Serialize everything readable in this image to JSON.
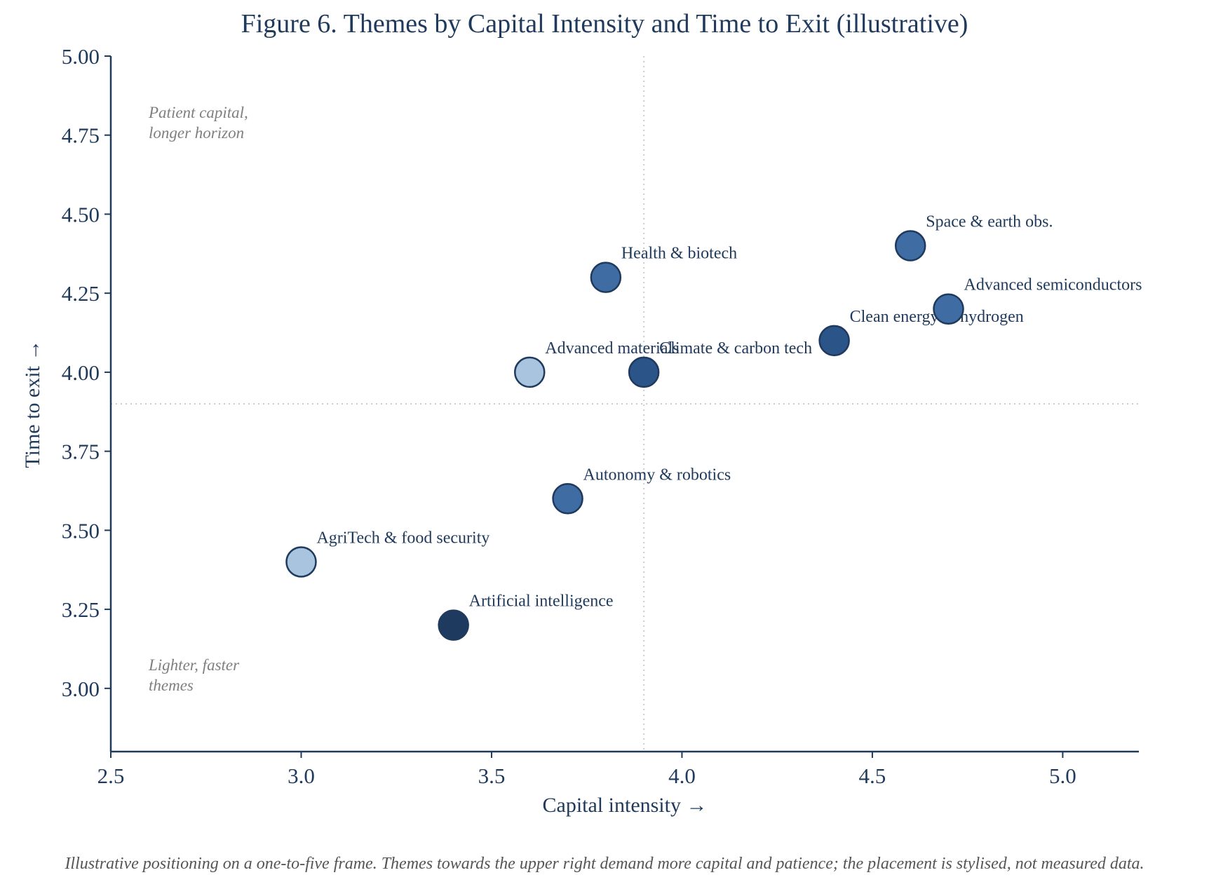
{
  "chart_data": {
    "type": "scatter",
    "title": "Figure 6. Themes by Capital Intensity and Time to Exit (illustrative)",
    "xlabel": "Capital intensity →",
    "ylabel": "Time to exit →",
    "xlim": [
      2.5,
      5.2
    ],
    "ylim": [
      2.8,
      5.0
    ],
    "x_ticks": [
      "2.5",
      "3.0",
      "3.5",
      "4.0",
      "4.5",
      "5.0"
    ],
    "y_ticks": [
      "3.00",
      "3.25",
      "3.50",
      "3.75",
      "4.00",
      "4.25",
      "4.50",
      "4.75",
      "5.00"
    ],
    "reference_lines": {
      "x": 3.9,
      "y": 3.9
    },
    "grid": false,
    "points": [
      {
        "label": "Artificial intelligence",
        "x": 3.4,
        "y": 3.2,
        "color": "#1f3a5f"
      },
      {
        "label": "AgriTech & food security",
        "x": 3.0,
        "y": 3.4,
        "color": "#a8c4de"
      },
      {
        "label": "Autonomy & robotics",
        "x": 3.7,
        "y": 3.6,
        "color": "#3f6ca3"
      },
      {
        "label": "Advanced materials",
        "x": 3.6,
        "y": 4.0,
        "color": "#a8c4de"
      },
      {
        "label": "Climate & carbon tech",
        "x": 3.9,
        "y": 4.0,
        "color": "#2b5488"
      },
      {
        "label": "Health & biotech",
        "x": 3.8,
        "y": 4.3,
        "color": "#3f6ca3"
      },
      {
        "label": "Clean energy & hydrogen",
        "x": 4.4,
        "y": 4.1,
        "color": "#2b5488"
      },
      {
        "label": "Space & earth obs.",
        "x": 4.6,
        "y": 4.4,
        "color": "#3f6ca3"
      },
      {
        "label": "Advanced semiconductors",
        "x": 4.7,
        "y": 4.2,
        "color": "#3f6ca3"
      }
    ],
    "annotations": [
      {
        "lines": [
          "Patient capital,",
          "longer horizon"
        ],
        "position": "top-left"
      },
      {
        "lines": [
          "Lighter, faster",
          "themes"
        ],
        "position": "bottom-left"
      }
    ]
  },
  "footnote": "Illustrative positioning on a one-to-five frame. Themes towards the upper right demand more capital and patience; the placement is stylised, not measured data.",
  "colors": {
    "axis": "#1f3a5c",
    "marker_edge": "#1f3a5c",
    "reference_line": "#cccccc"
  }
}
